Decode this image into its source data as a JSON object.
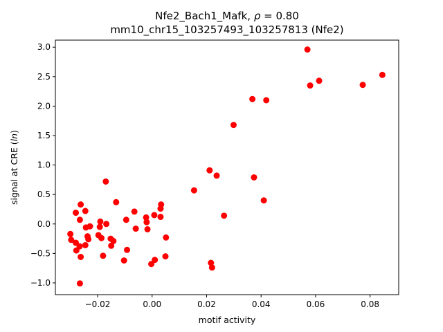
{
  "chart_data": {
    "type": "scatter",
    "title_line1_prefix": "Nfe2_Bach1_Mafk, ",
    "title_line1_rho": "ρ",
    "title_line1_suffix": " = 0.80",
    "title_line2": "mm10_chr15_103257493_103257813 (Nfe2)",
    "xlabel": "motif activity",
    "ylabel_prefix": "signal at CRE (",
    "ylabel_italic": "ln",
    "ylabel_suffix": ")",
    "xlim": [
      -0.0355,
      0.0905
    ],
    "ylim": [
      -1.2,
      3.12
    ],
    "xticks": [
      {
        "value": -0.02,
        "label": "−0.02"
      },
      {
        "value": 0.0,
        "label": "0.00"
      },
      {
        "value": 0.02,
        "label": "0.02"
      },
      {
        "value": 0.04,
        "label": "0.04"
      },
      {
        "value": 0.06,
        "label": "0.06"
      },
      {
        "value": 0.08,
        "label": "0.08"
      }
    ],
    "yticks": [
      {
        "value": -1.0,
        "label": "−1.0"
      },
      {
        "value": -0.5,
        "label": "−0.5"
      },
      {
        "value": 0.0,
        "label": "0.0"
      },
      {
        "value": 0.5,
        "label": "0.5"
      },
      {
        "value": 1.0,
        "label": "1.0"
      },
      {
        "value": 1.5,
        "label": "1.5"
      },
      {
        "value": 2.0,
        "label": "2.0"
      },
      {
        "value": 2.5,
        "label": "2.5"
      },
      {
        "value": 3.0,
        "label": "3.0"
      }
    ],
    "grid": false,
    "marker_color": "#ff0000",
    "points": [
      {
        "x": 0.057,
        "y": 2.96
      },
      {
        "x": 0.0845,
        "y": 2.53
      },
      {
        "x": 0.0613,
        "y": 2.43
      },
      {
        "x": 0.058,
        "y": 2.35
      },
      {
        "x": 0.0773,
        "y": 2.36
      },
      {
        "x": 0.0368,
        "y": 2.12
      },
      {
        "x": 0.0419,
        "y": 2.1
      },
      {
        "x": 0.0299,
        "y": 1.68
      },
      {
        "x": 0.0211,
        "y": 0.91
      },
      {
        "x": 0.0237,
        "y": 0.82
      },
      {
        "x": 0.0374,
        "y": 0.79
      },
      {
        "x": 0.0154,
        "y": 0.57
      },
      {
        "x": 0.041,
        "y": 0.4
      },
      {
        "x": 0.0264,
        "y": 0.14
      },
      {
        "x": 0.0216,
        "y": -0.66
      },
      {
        "x": 0.022,
        "y": -0.74
      },
      {
        "x": -0.017,
        "y": 0.72
      },
      {
        "x": -0.0262,
        "y": 0.33
      },
      {
        "x": -0.028,
        "y": 0.19
      },
      {
        "x": -0.0245,
        "y": 0.22
      },
      {
        "x": -0.0265,
        "y": 0.07
      },
      {
        "x": -0.0132,
        "y": 0.37
      },
      {
        "x": -0.0095,
        "y": 0.07
      },
      {
        "x": -0.0065,
        "y": 0.21
      },
      {
        "x": -0.019,
        "y": 0.04
      },
      {
        "x": -0.0168,
        "y": 0.0
      },
      {
        "x": -0.0243,
        "y": -0.06
      },
      {
        "x": -0.0228,
        "y": -0.04
      },
      {
        "x": -0.0192,
        "y": -0.05
      },
      {
        "x": -0.03,
        "y": -0.17
      },
      {
        "x": -0.0297,
        "y": -0.27
      },
      {
        "x": -0.0237,
        "y": -0.21
      },
      {
        "x": -0.0234,
        "y": -0.26
      },
      {
        "x": -0.0197,
        "y": -0.19
      },
      {
        "x": -0.0186,
        "y": -0.24
      },
      {
        "x": -0.0152,
        "y": -0.25
      },
      {
        "x": -0.0142,
        "y": -0.29
      },
      {
        "x": -0.015,
        "y": -0.37
      },
      {
        "x": -0.028,
        "y": -0.32
      },
      {
        "x": -0.0266,
        "y": -0.38
      },
      {
        "x": -0.0245,
        "y": -0.36
      },
      {
        "x": -0.0278,
        "y": -0.45
      },
      {
        "x": -0.0262,
        "y": -0.56
      },
      {
        "x": -0.018,
        "y": -0.54
      },
      {
        "x": -0.0092,
        "y": -0.44
      },
      {
        "x": -0.0103,
        "y": -0.62
      },
      {
        "x": -0.006,
        "y": -0.08
      },
      {
        "x": -0.0022,
        "y": 0.11
      },
      {
        "x": -0.002,
        "y": 0.03
      },
      {
        "x": -0.0017,
        "y": -0.09
      },
      {
        "x": 0.0008,
        "y": 0.15
      },
      {
        "x": 0.0031,
        "y": 0.12
      },
      {
        "x": 0.0031,
        "y": 0.26
      },
      {
        "x": 0.0033,
        "y": 0.33
      },
      {
        "x": 0.0051,
        "y": -0.23
      },
      {
        "x": 0.0049,
        "y": -0.55
      },
      {
        "x": 0.001,
        "y": -0.61
      },
      {
        "x": -0.0003,
        "y": -0.68
      },
      {
        "x": -0.0265,
        "y": -1.01
      }
    ]
  }
}
